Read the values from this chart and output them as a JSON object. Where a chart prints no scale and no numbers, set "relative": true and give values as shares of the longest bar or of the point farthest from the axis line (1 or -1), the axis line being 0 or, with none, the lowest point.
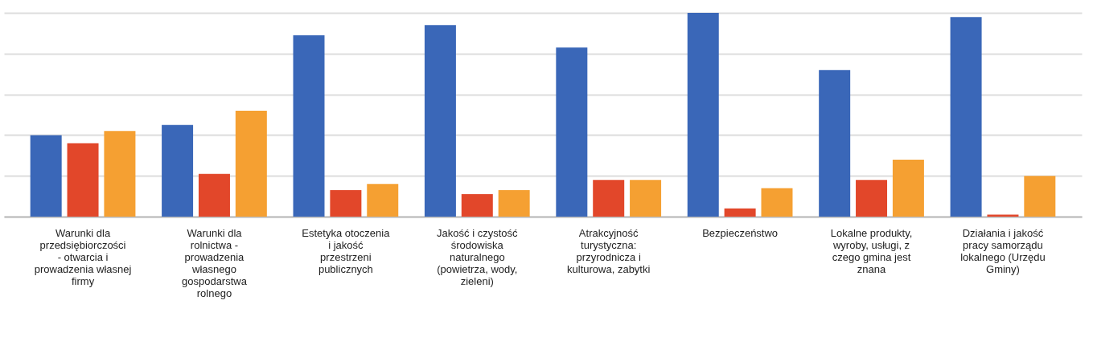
{
  "chart_data": {
    "type": "bar",
    "relative": true,
    "grid": "y",
    "legend": false,
    "categories": [
      "Warunki dla przedsiębiorczości - otwarcia i prowadzenia własnej firmy",
      "Warunki dla rolnictwa - prowadzenia własnego gospodarstwa rolnego",
      "Estetyka otoczenia i jakość przestrzeni publicznych",
      "Jakość i czystość środowiska naturalnego (powietrza, wody, zieleni)",
      "Atrakcyjność turystyczna: przyrodnicza i kulturowa, zabytki",
      "Bezpieczeństwo",
      "Lokalne produkty, wyroby, usługi, z czego gmina jest znana",
      "Działania i jakość pracy samorządu lokalnego (Urzędu Gminy)"
    ],
    "series": [
      {
        "color": "#3a67b8",
        "values": [
          0.4,
          0.45,
          0.89,
          0.94,
          0.83,
          1,
          0.72,
          0.98
        ]
      },
      {
        "color": "#e2472a",
        "values": [
          0.36,
          0.21,
          0.13,
          0.11,
          0.18,
          0.04,
          0.18,
          0.01
        ]
      },
      {
        "color": "#f5a032",
        "values": [
          0.42,
          0.52,
          0.16,
          0.13,
          0.18,
          0.14,
          0.28,
          0.2
        ]
      }
    ]
  }
}
